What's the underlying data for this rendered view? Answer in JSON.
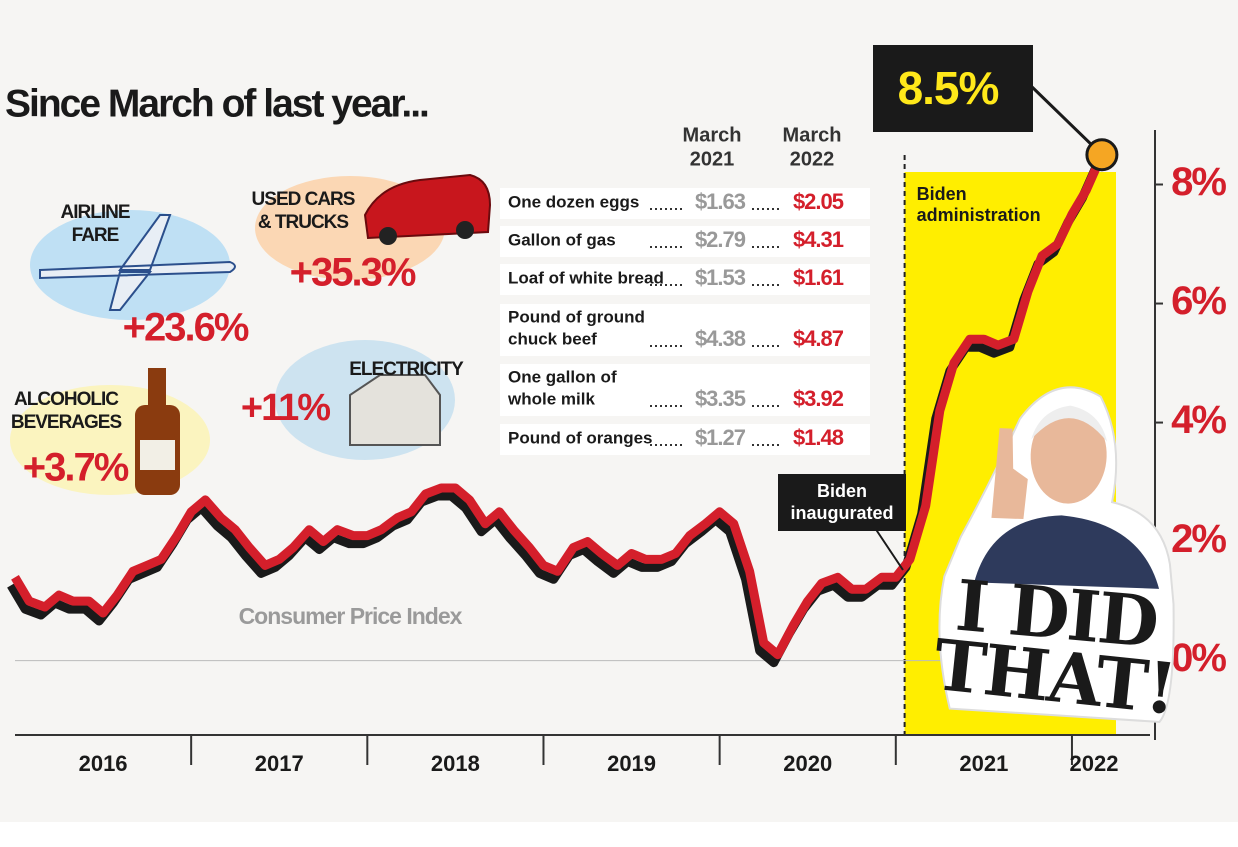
{
  "chart_data": {
    "type": "line",
    "title": "Since March of last year...",
    "x": [
      2016.0,
      2016.08,
      2016.17,
      2016.25,
      2016.33,
      2016.42,
      2016.5,
      2016.58,
      2016.67,
      2016.75,
      2016.83,
      2016.92,
      2017.0,
      2017.08,
      2017.17,
      2017.25,
      2017.33,
      2017.42,
      2017.5,
      2017.58,
      2017.67,
      2017.75,
      2017.83,
      2017.92,
      2018.0,
      2018.08,
      2018.17,
      2018.25,
      2018.33,
      2018.42,
      2018.5,
      2018.58,
      2018.67,
      2018.75,
      2018.83,
      2018.92,
      2019.0,
      2019.08,
      2019.17,
      2019.25,
      2019.33,
      2019.42,
      2019.5,
      2019.58,
      2019.67,
      2019.75,
      2019.83,
      2019.92,
      2020.0,
      2020.08,
      2020.17,
      2020.25,
      2020.33,
      2020.42,
      2020.5,
      2020.58,
      2020.67,
      2020.75,
      2020.83,
      2020.92,
      2021.0,
      2021.08,
      2021.17,
      2021.25,
      2021.33,
      2021.42,
      2021.5,
      2021.58,
      2021.67,
      2021.75,
      2021.83,
      2021.92,
      2022.0,
      2022.08,
      2022.17
    ],
    "series": [
      {
        "name": "Consumer Price Index",
        "color": "#d41f2b",
        "values": [
          1.4,
          1.0,
          0.9,
          1.1,
          1.0,
          1.0,
          0.8,
          1.1,
          1.5,
          1.6,
          1.7,
          2.1,
          2.5,
          2.7,
          2.4,
          2.2,
          1.9,
          1.6,
          1.7,
          1.9,
          2.2,
          2.0,
          2.2,
          2.1,
          2.1,
          2.2,
          2.4,
          2.5,
          2.8,
          2.9,
          2.9,
          2.7,
          2.3,
          2.5,
          2.2,
          1.9,
          1.6,
          1.5,
          1.9,
          2.0,
          1.8,
          1.6,
          1.8,
          1.7,
          1.7,
          1.8,
          2.1,
          2.3,
          2.5,
          2.3,
          1.5,
          0.3,
          0.1,
          0.6,
          1.0,
          1.3,
          1.4,
          1.2,
          1.2,
          1.4,
          1.4,
          1.7,
          2.6,
          4.2,
          5.0,
          5.4,
          5.4,
          5.3,
          5.4,
          6.2,
          6.8,
          7.0,
          7.5,
          7.9,
          8.5
        ]
      }
    ],
    "xlim": [
      2016,
      2022.25
    ],
    "xticks": [
      2017,
      2018,
      2019,
      2020,
      2021,
      2022
    ],
    "year_labels": [
      "2016",
      "2017",
      "2018",
      "2019",
      "2020",
      "2021",
      "2022"
    ],
    "ylim": [
      -1.25,
      9
    ],
    "yticks": [
      {
        "value": 0,
        "label": "0%"
      },
      {
        "value": 2,
        "label": "2%"
      },
      {
        "value": 4,
        "label": "4%"
      },
      {
        "value": 6,
        "label": "6%"
      },
      {
        "value": 8,
        "label": "8%"
      }
    ],
    "shade": {
      "x0": 2021.05,
      "x1": 2022.25,
      "color": "#ffee00",
      "label": [
        "Biden",
        "administration"
      ]
    },
    "peak_label": "8.5%",
    "event_label": [
      "Biden",
      "inaugurated"
    ],
    "price_table": {
      "headers": [
        [
          "March",
          "2021"
        ],
        [
          "March",
          "2022"
        ]
      ],
      "rows": [
        {
          "item": [
            "One dozen eggs"
          ],
          "before": "$1.63",
          "after": "$2.05"
        },
        {
          "item": [
            "Gallon of gas"
          ],
          "before": "$2.79",
          "after": "$4.31"
        },
        {
          "item": [
            "Loaf of white bread"
          ],
          "before": "$1.53",
          "after": "$1.61"
        },
        {
          "item": [
            "Pound of ground",
            "chuck beef"
          ],
          "before": "$4.38",
          "after": "$4.87"
        },
        {
          "item": [
            "One gallon of",
            "whole milk"
          ],
          "before": "$3.35",
          "after": "$3.92"
        },
        {
          "item": [
            "Pound of oranges"
          ],
          "before": "$1.27",
          "after": "$1.48"
        }
      ]
    },
    "callouts": [
      {
        "label": [
          "AIRLINE",
          "FARE"
        ],
        "change": "+23.6%"
      },
      {
        "label": [
          "USED CARS",
          "& TRUCKS"
        ],
        "change": "+35.3%"
      },
      {
        "label": [
          "ELECTRICITY"
        ],
        "change": "+11%"
      },
      {
        "label": [
          "ALCOHOLIC",
          "BEVERAGES"
        ],
        "change": "+3.7%"
      }
    ],
    "sticker": [
      "I DID",
      "THAT!"
    ]
  }
}
